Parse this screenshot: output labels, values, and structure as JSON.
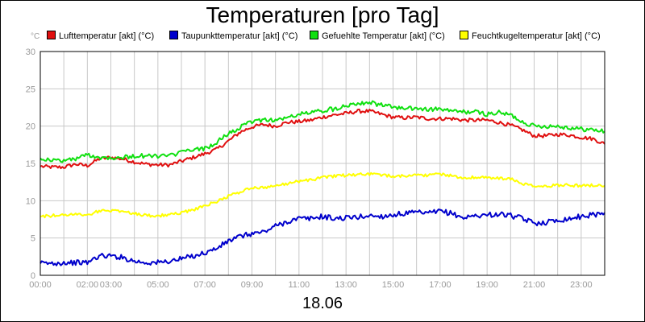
{
  "chart_data": {
    "type": "line",
    "title": "Temperaturen [pro Tag]",
    "date_label": "18.06",
    "y_unit": "°C",
    "ylim": [
      0,
      30
    ],
    "xlim": [
      0,
      24
    ],
    "yticks": [
      0,
      5,
      10,
      15,
      20,
      25,
      30
    ],
    "xticks": [
      {
        "t": 0,
        "label": "00:00"
      },
      {
        "t": 2,
        "label": "02:00"
      },
      {
        "t": 3,
        "label": "03:00"
      },
      {
        "t": 5,
        "label": "05:00"
      },
      {
        "t": 7,
        "label": "07:00"
      },
      {
        "t": 9,
        "label": "09:00"
      },
      {
        "t": 11,
        "label": "11:00"
      },
      {
        "t": 13,
        "label": "13:00"
      },
      {
        "t": 15,
        "label": "15:00"
      },
      {
        "t": 17,
        "label": "17:00"
      },
      {
        "t": 19,
        "label": "19:00"
      },
      {
        "t": 21,
        "label": "21:00"
      },
      {
        "t": 23,
        "label": "23:00"
      }
    ],
    "grid": true,
    "series": [
      {
        "name": "Lufttemperatur [akt] (°C)",
        "color": "#e01010",
        "x": [
          0,
          0.5,
          1,
          1.5,
          2,
          2.5,
          3,
          3.5,
          4,
          4.5,
          5,
          5.5,
          6,
          6.5,
          7,
          7.5,
          8,
          8.5,
          9,
          9.5,
          10,
          10.5,
          11,
          11.5,
          12,
          12.5,
          13,
          13.5,
          14,
          14.5,
          15,
          15.5,
          16,
          16.5,
          17,
          17.5,
          18,
          18.5,
          19,
          19.5,
          20,
          20.5,
          21,
          21.5,
          22,
          22.5,
          23,
          23.5,
          24
        ],
        "y": [
          14.6,
          14.5,
          14.5,
          14.9,
          14.7,
          15.6,
          15.8,
          15.6,
          15.2,
          14.9,
          14.8,
          14.8,
          15.3,
          15.8,
          16.3,
          16.9,
          18.0,
          19.2,
          19.9,
          20.2,
          20.0,
          20.5,
          20.6,
          20.8,
          21.2,
          21.5,
          21.7,
          22.0,
          22.0,
          21.6,
          21.2,
          21.1,
          21.2,
          21.0,
          21.0,
          21.0,
          20.8,
          20.8,
          20.8,
          20.5,
          20.1,
          19.5,
          18.7,
          18.7,
          18.9,
          18.8,
          18.5,
          18.3,
          17.6
        ]
      },
      {
        "name": "Taupunkttemperatur [akt] (°C)",
        "color": "#0000cc",
        "x": [
          0,
          0.5,
          1,
          1.5,
          2,
          2.5,
          3,
          3.5,
          4,
          4.5,
          5,
          5.5,
          6,
          6.5,
          7,
          7.5,
          8,
          8.5,
          9,
          9.5,
          10,
          10.5,
          11,
          11.5,
          12,
          12.5,
          13,
          13.5,
          14,
          14.5,
          15,
          15.5,
          16,
          16.5,
          17,
          17.5,
          18,
          18.5,
          19,
          19.5,
          20,
          20.5,
          21,
          21.5,
          22,
          22.5,
          23,
          23.5,
          24
        ],
        "y": [
          1.6,
          1.6,
          1.7,
          1.7,
          1.7,
          2.6,
          2.6,
          2.4,
          1.9,
          1.7,
          1.7,
          1.9,
          2.2,
          2.6,
          3.0,
          3.6,
          4.6,
          5.2,
          5.6,
          5.8,
          6.6,
          7.2,
          7.6,
          7.6,
          7.9,
          7.6,
          7.7,
          7.8,
          8.0,
          7.9,
          8.1,
          8.3,
          8.4,
          8.3,
          8.6,
          8.3,
          7.7,
          8.0,
          8.1,
          8.2,
          8.0,
          7.6,
          7.0,
          7.1,
          7.4,
          7.6,
          7.9,
          8.1,
          8.4
        ]
      },
      {
        "name": "Gefuehlte Temperatur [akt] (°C)",
        "color": "#10e010",
        "x": [
          0,
          0.5,
          1,
          1.5,
          2,
          2.5,
          3,
          3.5,
          4,
          4.5,
          5,
          5.5,
          6,
          6.5,
          7,
          7.5,
          8,
          8.5,
          9,
          9.5,
          10,
          10.5,
          11,
          11.5,
          12,
          12.5,
          13,
          13.5,
          14,
          14.5,
          15,
          15.5,
          16,
          16.5,
          17,
          17.5,
          18,
          18.5,
          19,
          19.5,
          20,
          20.5,
          21,
          21.5,
          22,
          22.5,
          23,
          23.5,
          24
        ],
        "y": [
          15.7,
          15.4,
          15.4,
          15.6,
          16.2,
          15.8,
          15.8,
          15.8,
          16.0,
          16.0,
          16.0,
          16.0,
          16.5,
          16.8,
          17.0,
          17.8,
          19.0,
          19.8,
          20.6,
          20.9,
          20.8,
          21.1,
          21.6,
          21.8,
          22.1,
          22.3,
          22.8,
          23.1,
          23.2,
          22.8,
          22.6,
          22.3,
          22.4,
          22.2,
          22.3,
          22.0,
          21.9,
          21.9,
          21.6,
          21.8,
          21.5,
          20.6,
          20.0,
          20.0,
          20.0,
          19.8,
          19.6,
          19.5,
          19.3
        ]
      },
      {
        "name": "Feuchtkugeltemperatur [akt] (°C)",
        "color": "#ffff00",
        "x": [
          0,
          0.5,
          1,
          1.5,
          2,
          2.5,
          3,
          3.5,
          4,
          4.5,
          5,
          5.5,
          6,
          6.5,
          7,
          7.5,
          8,
          8.5,
          9,
          9.5,
          10,
          10.5,
          11,
          11.5,
          12,
          12.5,
          13,
          13.5,
          14,
          14.5,
          15,
          15.5,
          16,
          16.5,
          17,
          17.5,
          18,
          18.5,
          19,
          19.5,
          20,
          20.5,
          21,
          21.5,
          22,
          22.5,
          23,
          23.5,
          24
        ],
        "y": [
          7.9,
          8.0,
          8.1,
          8.2,
          8.1,
          8.6,
          8.7,
          8.6,
          8.3,
          8.0,
          8.0,
          8.1,
          8.4,
          8.8,
          9.3,
          9.9,
          10.6,
          11.2,
          11.7,
          11.8,
          12.0,
          12.3,
          12.6,
          12.8,
          13.1,
          13.3,
          13.4,
          13.5,
          13.6,
          13.4,
          13.3,
          13.3,
          13.5,
          13.4,
          13.6,
          13.3,
          13.1,
          13.1,
          13.1,
          13.0,
          12.9,
          12.3,
          11.9,
          11.9,
          12.1,
          12.1,
          12.0,
          12.1,
          12.0
        ]
      }
    ]
  }
}
